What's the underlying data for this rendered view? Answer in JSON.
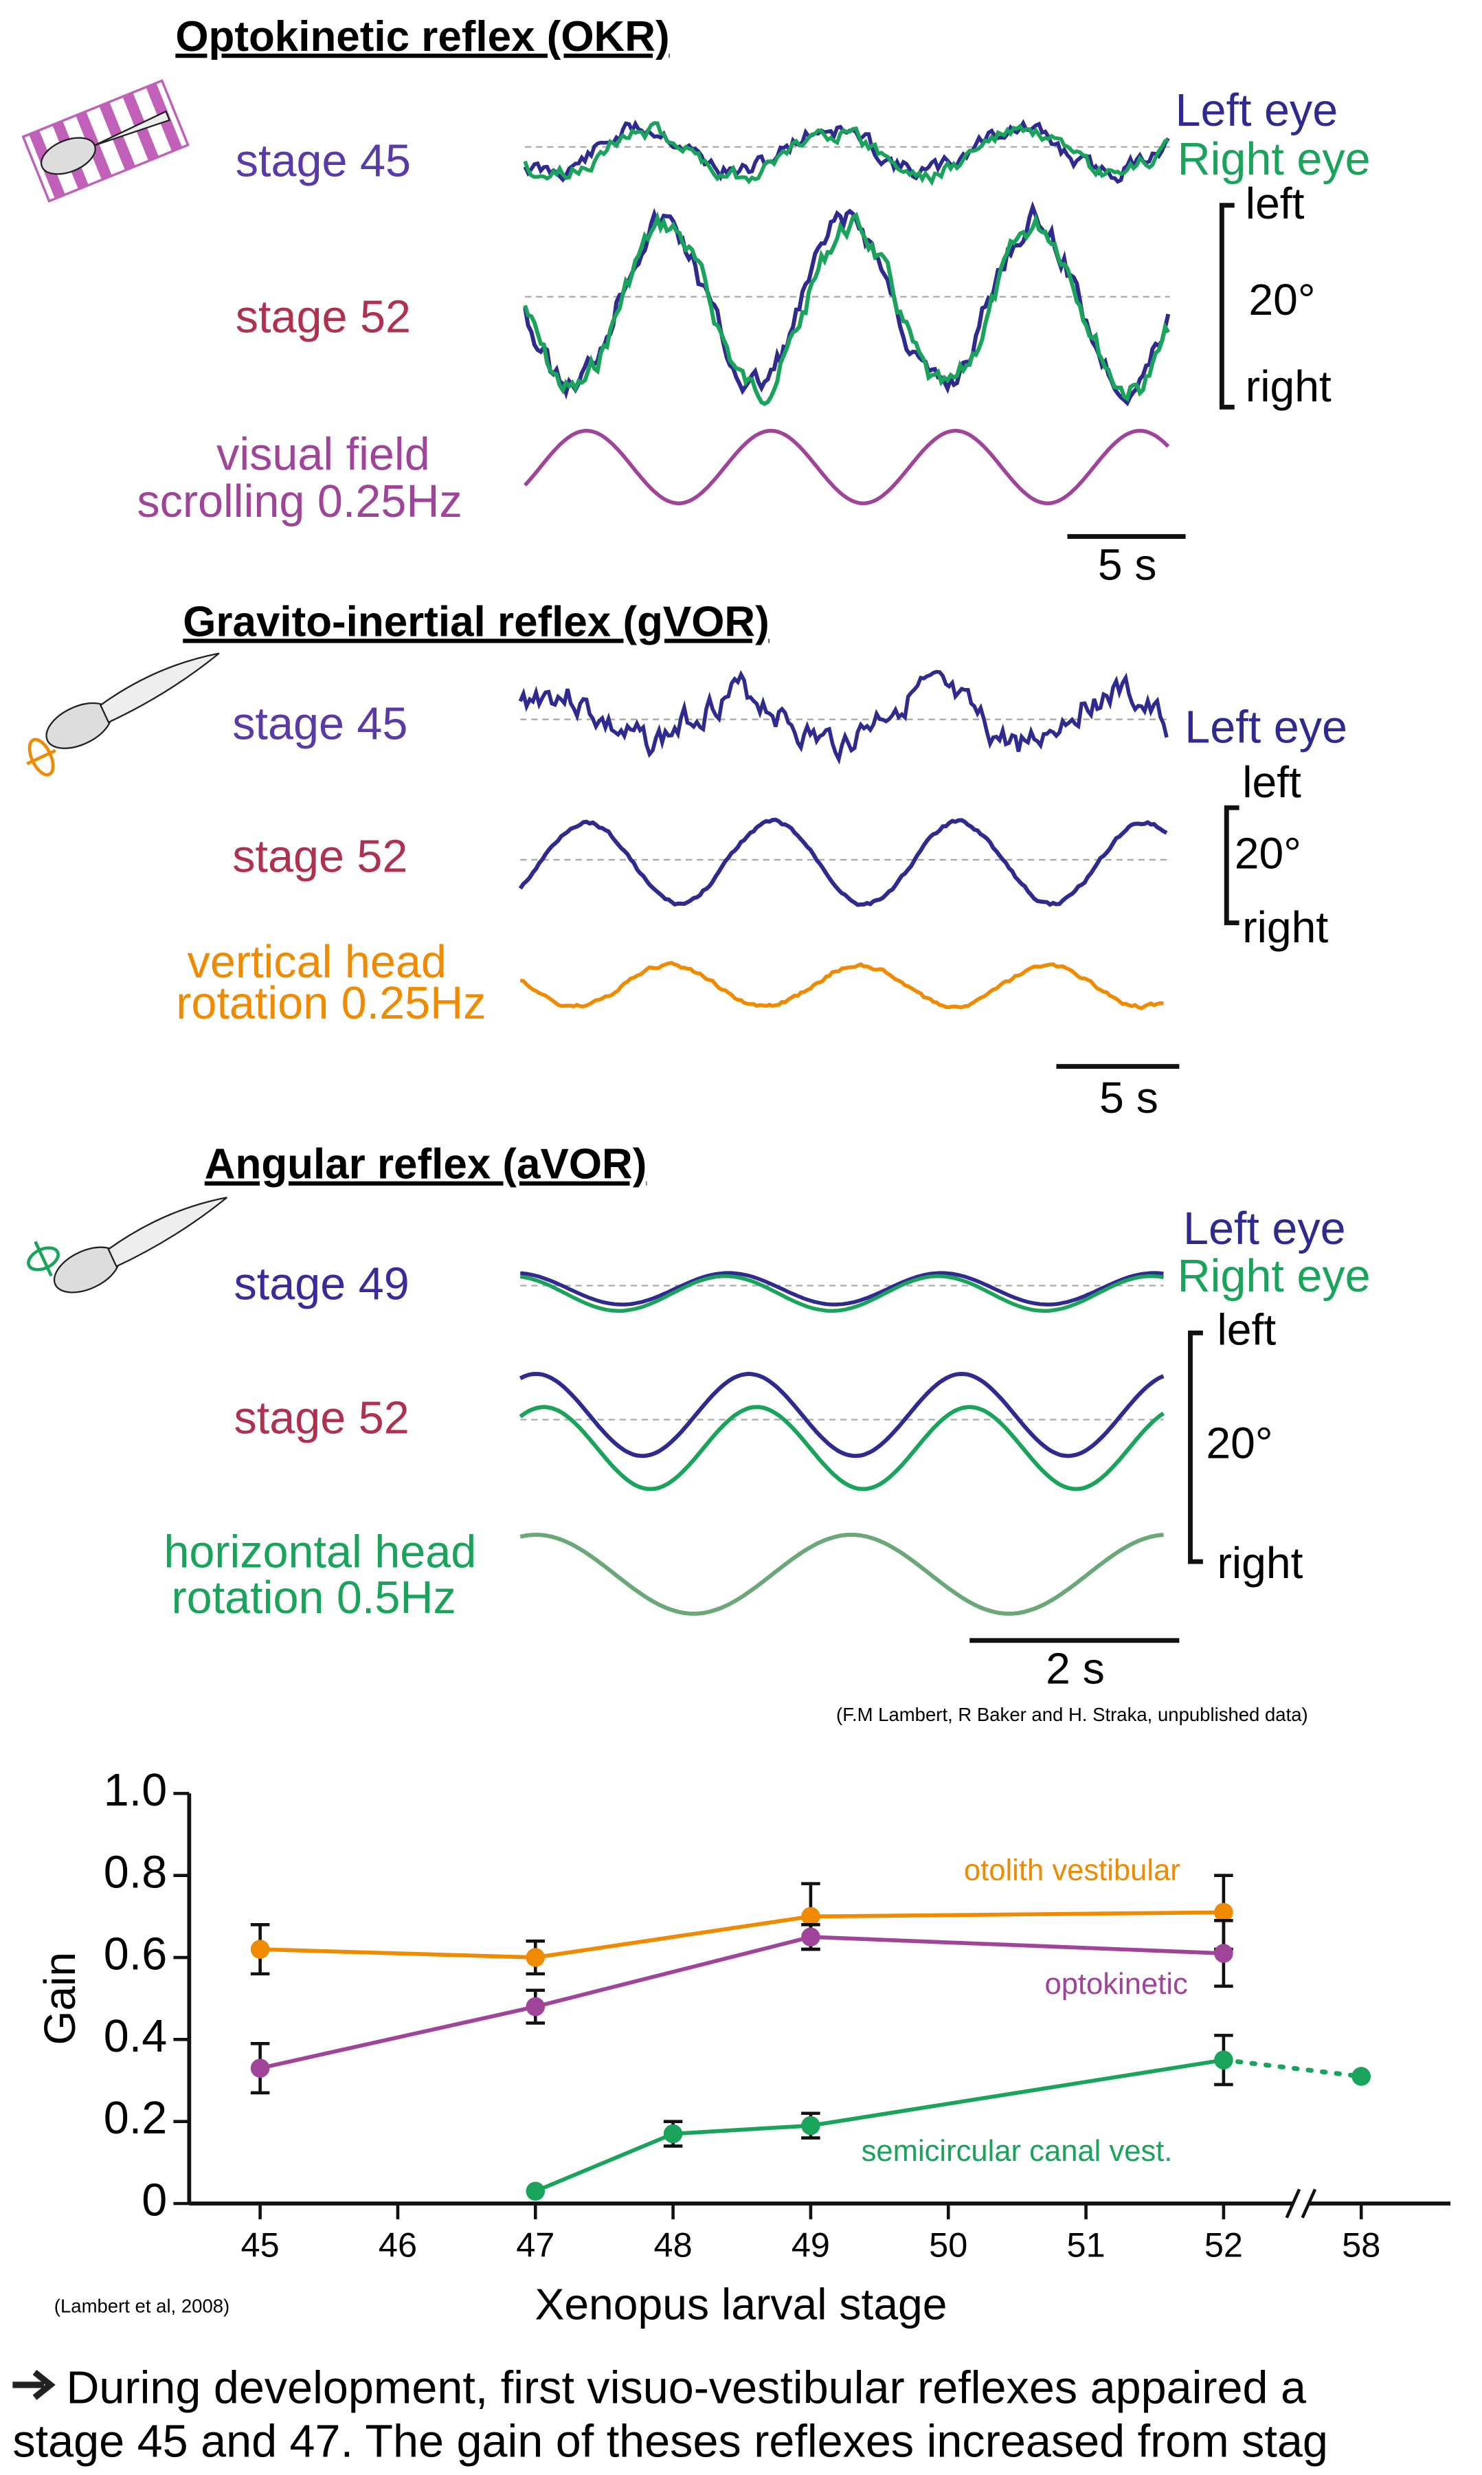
{
  "panels": [
    {
      "title": "Optokinetic reflex (OKR)",
      "rows": [
        [
          "stage 45"
        ],
        [
          "stage 52"
        ],
        [
          "visual field",
          "scrolling 0.25Hz"
        ]
      ],
      "legend": [
        "Left eye",
        "Right eye"
      ],
      "scale": [
        "left",
        "20°",
        "right"
      ],
      "time_scale": "5 s"
    },
    {
      "title": "Gravito-inertial reflex (gVOR)",
      "rows": [
        [
          "stage 45"
        ],
        [
          "stage 52"
        ],
        [
          "vertical head",
          "rotation 0.25Hz"
        ]
      ],
      "legend": [
        "Left eye"
      ],
      "scale": [
        "left",
        "20°",
        "right"
      ],
      "time_scale": "5 s"
    },
    {
      "title": "Angular reflex (aVOR)",
      "rows": [
        [
          "stage 49"
        ],
        [
          "stage 52"
        ],
        [
          "horizontal head",
          "rotation 0.5Hz"
        ]
      ],
      "legend": [
        "Left eye",
        "Right eye"
      ],
      "scale": [
        "left",
        "20°",
        "right"
      ],
      "time_scale": "2 s"
    }
  ],
  "credit": "(F.M Lambert, R Baker and H. Straka, unpublished data)",
  "chart_data": {
    "type": "line",
    "xlabel": "Xenopus larval stage",
    "ylabel": "Gain",
    "source": "(Lambert et al, 2008)",
    "categories": [
      "45",
      "46",
      "47",
      "48",
      "49",
      "50",
      "51",
      "52",
      "58"
    ],
    "x_break": true,
    "ylim": [
      0,
      1
    ],
    "yticks": [
      0,
      0.2,
      0.4,
      0.6,
      0.8,
      {
        "value": 1,
        "label": "1.0"
      }
    ],
    "series": [
      {
        "name": "otolith vestibular",
        "color": "#f08a00",
        "values": [
          0.62,
          null,
          0.6,
          null,
          0.7,
          null,
          null,
          0.71,
          null
        ],
        "errors": [
          0.06,
          null,
          0.04,
          null,
          0.08,
          null,
          null,
          0.09,
          null
        ]
      },
      {
        "name": "optokinetic",
        "color": "#a0449a",
        "values": [
          0.33,
          null,
          0.48,
          null,
          0.65,
          null,
          null,
          0.61,
          null
        ],
        "errors": [
          0.06,
          null,
          0.04,
          null,
          0.03,
          null,
          null,
          0.08,
          null
        ]
      },
      {
        "name": "semicircular canal vest.",
        "color": "#1aa35a",
        "values": [
          null,
          null,
          0.03,
          0.17,
          0.19,
          null,
          null,
          0.35,
          0.31
        ],
        "errors": [
          null,
          null,
          null,
          0.03,
          0.03,
          null,
          null,
          0.06,
          null
        ]
      }
    ]
  },
  "footer": [
    "During development, first visuo-vestibular reflexes appaired a",
    "stage 45 and 47. The gain of theses reflexes increased from stag"
  ]
}
